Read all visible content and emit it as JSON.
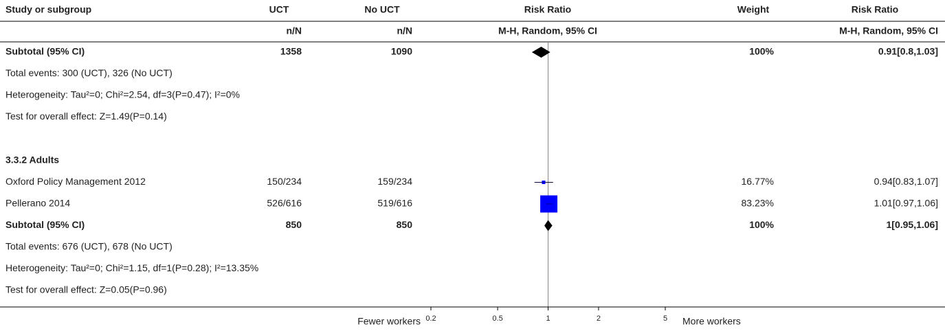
{
  "chart_data": {
    "type": "forest",
    "columns": [
      "Study or subgroup",
      "UCT",
      "No UCT",
      "Risk Ratio",
      "Weight",
      "Risk Ratio"
    ],
    "subheaders": [
      "n/N",
      "n/N",
      "M-H, Random, 95% CI",
      "M-H, Random, 95% CI"
    ],
    "rows": [
      {
        "kind": "subtotal",
        "label": "Subtotal (95% CI)",
        "uct": 1358,
        "nouct": 1090,
        "rr": 0.91,
        "lo": 0.8,
        "hi": 1.03,
        "weight": 100,
        "weight_label": "100%",
        "rr_label": "0.91[0.8,1.03]"
      },
      {
        "kind": "text",
        "label": "Total events: 300 (UCT), 326 (No UCT)"
      },
      {
        "kind": "text",
        "label": "Heterogeneity: Tau²=0; Chi²=2.54, df=3(P=0.47); I²=0%"
      },
      {
        "kind": "text",
        "label": "Test for overall effect: Z=1.49(P=0.14)"
      },
      {
        "kind": "heading",
        "label": "3.3.2 Adults"
      },
      {
        "kind": "study",
        "label": "Oxford Policy Management 2012",
        "uct": "150/234",
        "nouct": "159/234",
        "rr": 0.94,
        "lo": 0.83,
        "hi": 1.07,
        "weight": 16.77,
        "weight_label": "16.77%",
        "rr_label": "0.94[0.83,1.07]"
      },
      {
        "kind": "study",
        "label": "Pellerano 2014",
        "uct": "526/616",
        "nouct": "519/616",
        "rr": 1.01,
        "lo": 0.97,
        "hi": 1.06,
        "weight": 83.23,
        "weight_label": "83.23%",
        "rr_label": "1.01[0.97,1.06]"
      },
      {
        "kind": "subtotal",
        "label": "Subtotal (95% CI)",
        "uct": 850,
        "nouct": 850,
        "rr": 1,
        "lo": 0.95,
        "hi": 1.06,
        "weight": 100,
        "weight_label": "100%",
        "rr_label": "1[0.95,1.06]"
      },
      {
        "kind": "text",
        "label": "Total events: 676 (UCT), 678 (No UCT)"
      },
      {
        "kind": "text",
        "label": "Heterogeneity: Tau²=0; Chi²=1.15, df=1(P=0.28); I²=13.35%"
      },
      {
        "kind": "text",
        "label": "Test for overall effect: Z=0.05(P=0.96)"
      }
    ],
    "xlim": [
      0.2,
      5
    ],
    "xticks": [
      0.2,
      0.5,
      1,
      2,
      5
    ],
    "log_scale": true,
    "xlabel_left": "Fewer workers",
    "xlabel_right": "More workers",
    "square_color": "#0000ff",
    "line_color": "#000033",
    "diamond_color": "#000000"
  }
}
